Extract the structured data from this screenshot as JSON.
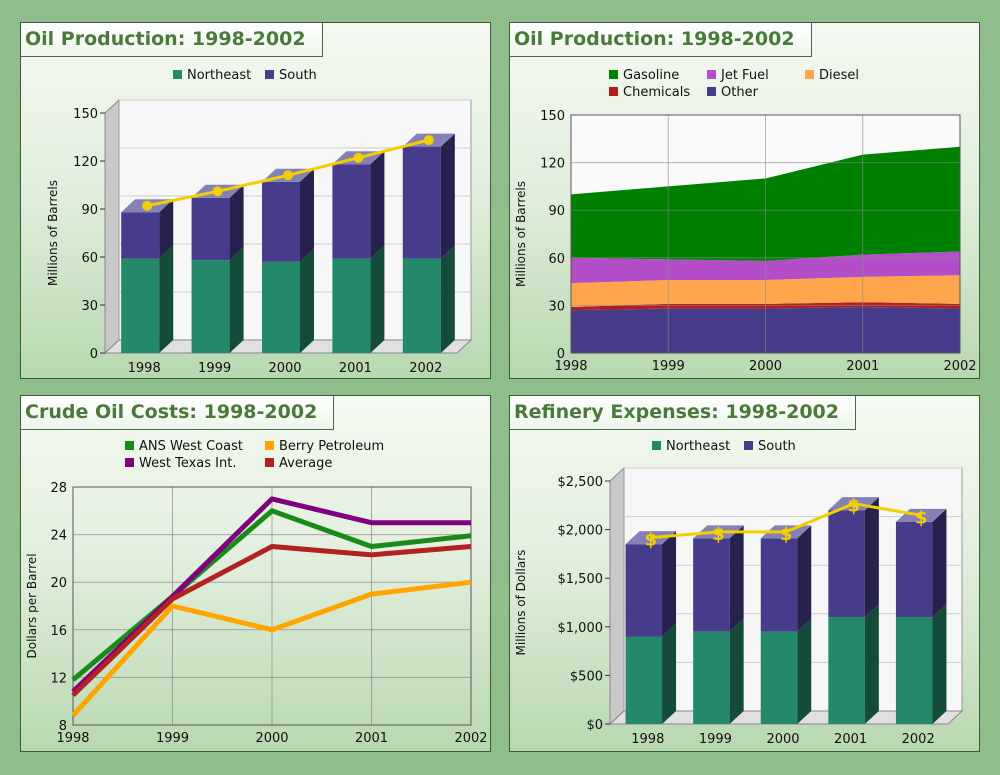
{
  "colors": {
    "northeast": "#24886a",
    "south": "#473c8c",
    "gasoline": "#008000",
    "jet_fuel": "#b44ec8",
    "diesel": "#ffa64c",
    "chemicals": "#b21e1e",
    "other": "#473c8c",
    "ans": "#1a8a1a",
    "berry": "#ffa500",
    "wti": "#800080",
    "average": "#b22222",
    "total_line": "#f0d000"
  },
  "chart_data": [
    {
      "type": "bar",
      "title": "Oil Production: 1998-2002",
      "ylabel": "Millions of Barrels",
      "ylim": [
        0,
        150
      ],
      "yticks": [
        "0",
        "30",
        "60",
        "90",
        "120",
        "150"
      ],
      "categories": [
        "1998",
        "1999",
        "2000",
        "2001",
        "2002"
      ],
      "series": [
        {
          "name": "Northeast",
          "values": [
            59,
            58,
            57,
            59,
            59
          ]
        },
        {
          "name": "South",
          "values": [
            29,
            39,
            50,
            59,
            70
          ]
        }
      ],
      "totals": [
        88,
        97,
        107,
        118,
        129
      ],
      "stacked": true,
      "legend": "top"
    },
    {
      "type": "area",
      "title": "Oil Production: 1998-2002",
      "ylabel": "Millions of Barrels",
      "ylim": [
        0,
        150
      ],
      "yticks": [
        "0",
        "30",
        "60",
        "90",
        "120",
        "150"
      ],
      "x": [
        "1998",
        "1999",
        "2000",
        "2001",
        "2002"
      ],
      "series": [
        {
          "name": "Other",
          "values": [
            27,
            28,
            28,
            29,
            28
          ]
        },
        {
          "name": "Chemicals",
          "values": [
            2,
            3,
            3,
            3,
            3
          ]
        },
        {
          "name": "Diesel",
          "values": [
            15,
            15,
            15,
            16,
            18
          ]
        },
        {
          "name": "Jet Fuel",
          "values": [
            16,
            13,
            12,
            14,
            15
          ]
        },
        {
          "name": "Gasoline",
          "values": [
            40,
            46,
            52,
            63,
            66
          ]
        }
      ],
      "stacked": true,
      "grid": true,
      "legend": "top"
    },
    {
      "type": "line",
      "title": "Crude Oil Costs: 1998-2002",
      "ylabel": "Dollars per Barrel",
      "ylim": [
        8,
        28
      ],
      "yticks": [
        "8",
        "12",
        "16",
        "20",
        "24",
        "28"
      ],
      "x": [
        "1998",
        "1999",
        "2000",
        "2001",
        "2002"
      ],
      "series": [
        {
          "name": "ANS West Coast",
          "values": [
            11.8,
            18.8,
            26,
            23,
            23.9
          ]
        },
        {
          "name": "Berry Petroleum",
          "values": [
            8.8,
            18,
            16,
            19,
            20
          ]
        },
        {
          "name": "West Texas Int.",
          "values": [
            10.8,
            18.8,
            27,
            25,
            25
          ]
        },
        {
          "name": "Average",
          "values": [
            10.5,
            18.6,
            23,
            22.3,
            23
          ]
        }
      ],
      "grid": true,
      "legend": "top"
    },
    {
      "type": "bar",
      "title": "Refinery Expenses: 1998-2002",
      "ylabel": "Millions of Dollars",
      "ylim": [
        0,
        2500
      ],
      "yticks": [
        "$0",
        "$500",
        "$1,000",
        "$1,500",
        "$2,000",
        "$2,500"
      ],
      "categories": [
        "1998",
        "1999",
        "2000",
        "2001",
        "2002"
      ],
      "series": [
        {
          "name": "Northeast",
          "values": [
            900,
            950,
            950,
            1100,
            1100
          ]
        },
        {
          "name": "South",
          "values": [
            950,
            960,
            960,
            1100,
            980
          ]
        }
      ],
      "totals": [
        1850,
        1910,
        1910,
        2200,
        2080
      ],
      "total_marker": "$",
      "stacked": true,
      "legend": "top"
    }
  ]
}
